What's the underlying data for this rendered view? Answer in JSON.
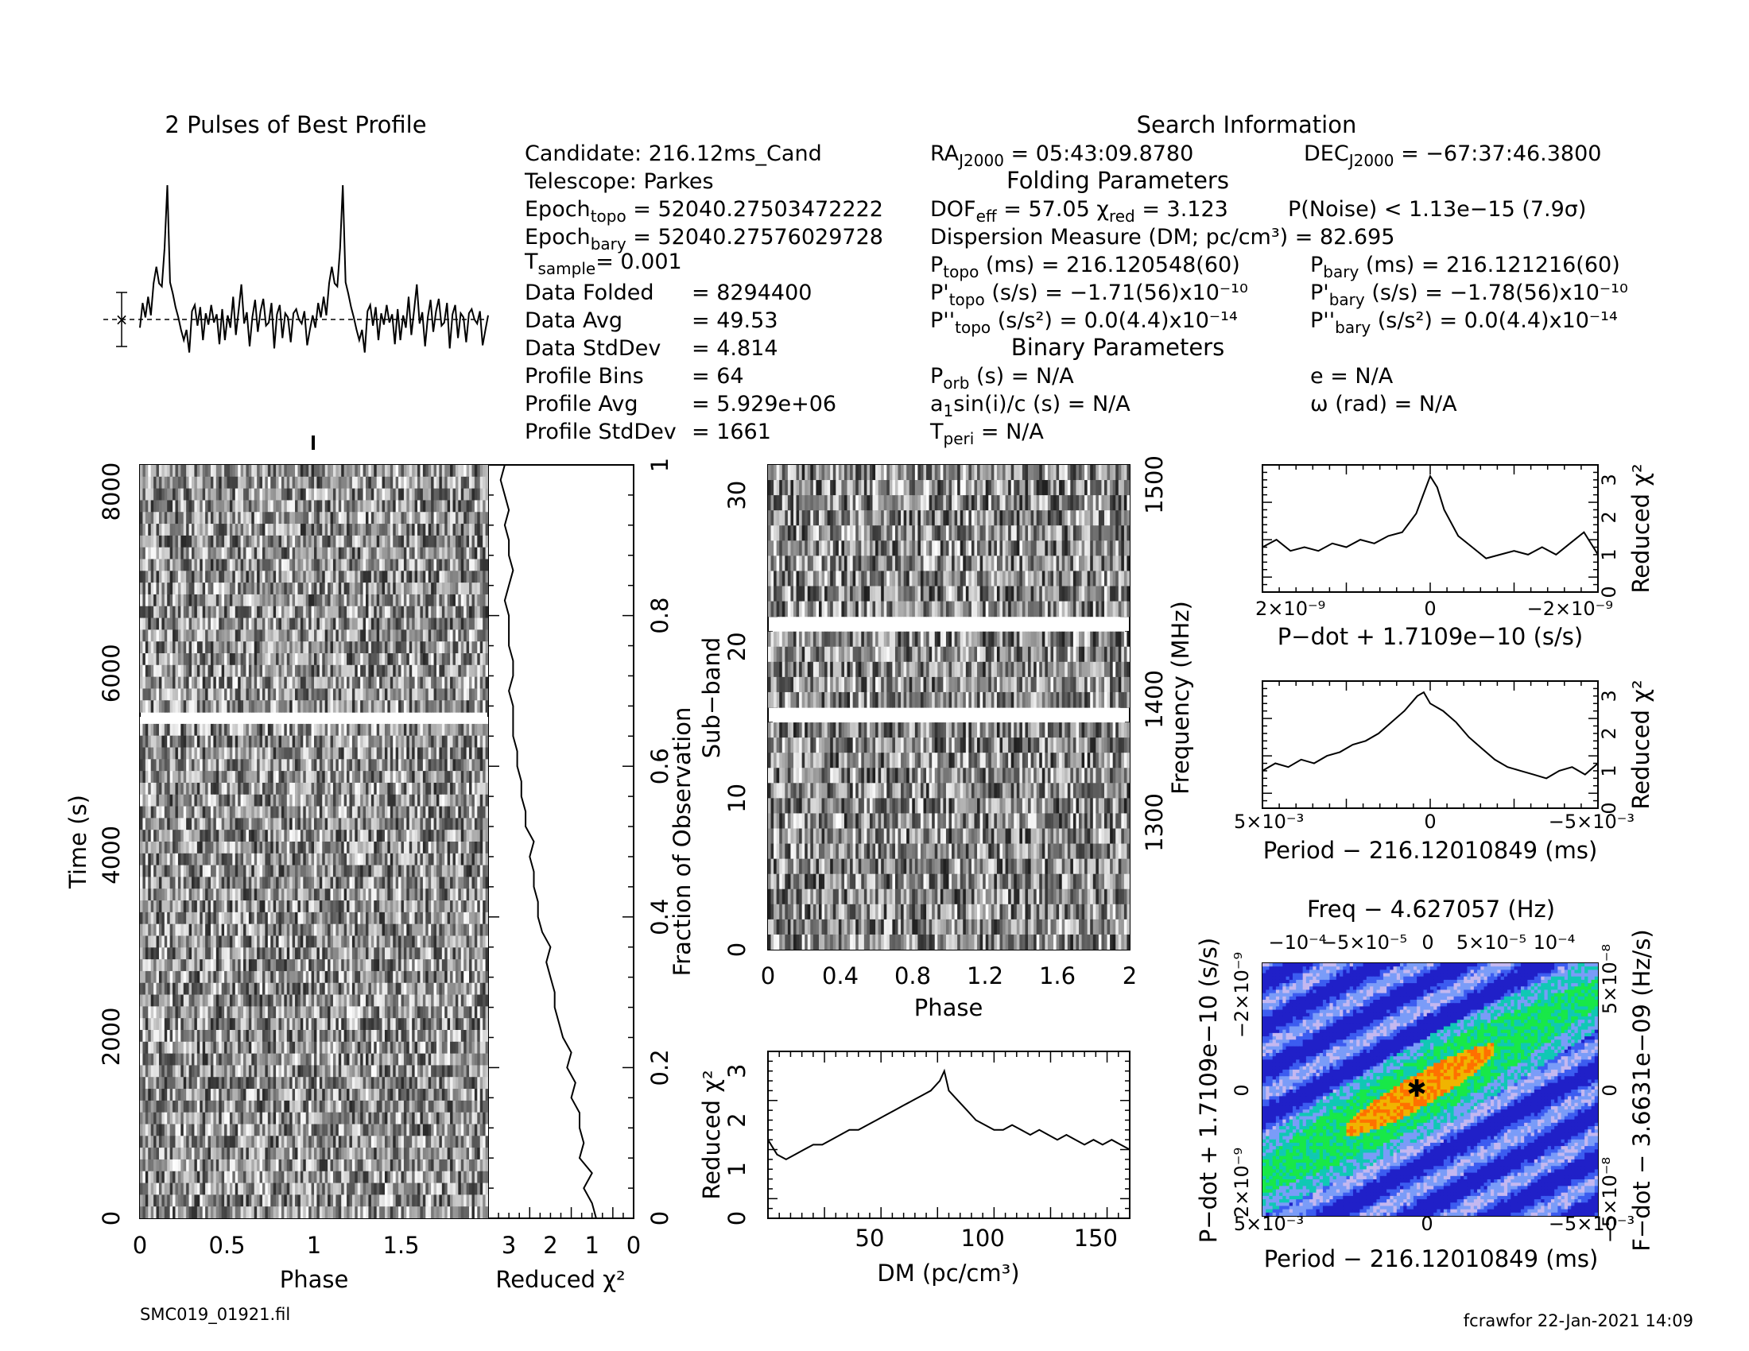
{
  "filename": "SMC019_01921.fil",
  "footer": "fcrawfor 22-Jan-2021 14:09",
  "best_profile": {
    "title": "2 Pulses of Best Profile"
  },
  "search_info": {
    "title": "Search Information",
    "left_column": [
      {
        "label": "Candidate:  216.12ms_Cand"
      },
      {
        "label": "Telescope:  Parkes"
      },
      {
        "label": "Epoch",
        "sub": "topo",
        "value": " = 52040.27503472222"
      },
      {
        "label": "Epoch",
        "sub": "bary",
        "value": " = 52040.27576029728"
      },
      {
        "label": "T",
        "sub": "sample",
        "value": "=   0.001"
      },
      {
        "label": "Data Folded",
        "value": "=   8294400"
      },
      {
        "label": "Data Avg",
        "value": "=   49.53"
      },
      {
        "label": "Data StdDev",
        "value": "=   4.814"
      },
      {
        "label": "Profile Bins",
        "value": "=   64"
      },
      {
        "label": "Profile Avg",
        "value": "=   5.929e+06"
      },
      {
        "label": "Profile StdDev",
        "value": "=   1661"
      }
    ],
    "ra": {
      "label": "RA",
      "sub": "J2000",
      "value": " = 05:43:09.8780"
    },
    "dec": {
      "label": "DEC",
      "sub": "J2000",
      "value": " = −67:37:46.3800"
    },
    "folding_title": "Folding Parameters",
    "dof": {
      "label": "DOF",
      "sub": "eff",
      "value": " = 57.05  χ",
      "sub2": "red",
      "value2": " = 3.123"
    },
    "pnoise": "P(Noise) < 1.13e−15   (7.9σ)",
    "dm": "Dispersion Measure (DM; pc/cm³) = 82.695",
    "ptopo": {
      "label": "P",
      "sub": "topo",
      "value": " (ms)  =  216.120548(60)"
    },
    "pbary": {
      "label": "P",
      "sub": "bary",
      "value": " (ms)  =  216.121216(60)"
    },
    "pdot_topo": {
      "label": "P'",
      "sub": "topo",
      "value": " (s/s)  = −1.71(56)x10⁻¹⁰"
    },
    "pdot_bary": {
      "label": "P'",
      "sub": "bary",
      "value": " (s/s)  = −1.78(56)x10⁻¹⁰"
    },
    "pddot_topo": {
      "label": "P''",
      "sub": "topo",
      "value": " (s/s²) = 0.0(4.4)x10⁻¹⁴"
    },
    "pddot_bary": {
      "label": "P''",
      "sub": "bary",
      "value": " (s/s²) = 0.0(4.4)x10⁻¹⁴"
    },
    "binary_title": "Binary Parameters",
    "porb": {
      "label": "P",
      "sub": "orb",
      "value": " (s) = N/A"
    },
    "ecc": "e = N/A",
    "a1": {
      "label": "a",
      "sub": "1",
      "value": "sin(i)/c (s) = N/A"
    },
    "omega": "ω (rad) = N/A",
    "tperi": {
      "label": "T",
      "sub": "peri",
      "value": " = N/A"
    }
  },
  "chart_data": [
    {
      "name": "best-profile",
      "type": "line",
      "x": [
        0,
        1,
        2,
        3,
        4,
        5,
        6,
        7,
        8,
        9,
        10,
        11,
        12,
        13,
        14,
        15,
        16,
        17,
        18,
        19,
        20,
        21,
        22,
        23,
        24,
        25,
        26,
        27,
        28,
        29,
        30,
        31,
        32,
        33,
        34,
        35,
        36,
        37,
        38,
        39,
        40,
        41,
        42,
        43,
        44,
        45,
        46,
        47,
        48,
        49,
        50,
        51,
        52,
        53,
        54,
        55,
        56,
        57,
        58,
        59,
        60,
        61,
        62,
        63
      ],
      "values": [
        -0.8,
        1.6,
        0.2,
        2.2,
        0.4,
        3.5,
        5.1,
        3.5,
        3.2,
        6.9,
        13.0,
        3.6,
        2.5,
        1.2,
        0.2,
        -1.0,
        -2.0,
        -1.0,
        -3.2,
        0.8,
        1.4,
        -0.6,
        1.2,
        -2.0,
        0.6,
        -0.5,
        1.4,
        -0.3,
        0.5,
        -2.4,
        1.0,
        -2.0,
        0.4,
        -0.8,
        2.2,
        -1.5,
        0.9,
        3.4,
        -0.4,
        0.7,
        -2.6,
        0.2,
        1.9,
        -1.2,
        0.8,
        2.0,
        -0.6,
        -0.3,
        1.6,
        -2.8,
        0.5,
        1.4,
        -1.8,
        0.6,
        0.2,
        -2.2,
        0.6,
        1.0,
        0.0,
        -0.4,
        0.8,
        -2.5,
        -1.0,
        0.4
      ],
      "xlabel": "",
      "ylabel": "",
      "notes_visible": "two pulses shown"
    },
    {
      "name": "time-phase",
      "type": "heatmap",
      "xlabel": "Phase",
      "ylabel": "Time (s)",
      "xticks": [
        "0",
        "0.5",
        "1",
        "1.5"
      ],
      "yticks": [
        "0",
        "2000",
        "4000",
        "6000",
        "8000"
      ],
      "xlim": [
        0,
        2
      ],
      "ylim": [
        0,
        8294
      ]
    },
    {
      "name": "time-chi2",
      "type": "line",
      "xlabel": "Reduced χ²",
      "ylabel": "Fraction of Observation",
      "xticks": [
        "3",
        "2",
        "1",
        "0"
      ],
      "yticks": [
        "0",
        "0.2",
        "0.4",
        "0.6",
        "0.8",
        "1"
      ],
      "xlim": [
        3.5,
        0
      ],
      "ylim": [
        0,
        1
      ],
      "x": [
        0.0,
        0.02,
        0.04,
        0.06,
        0.08,
        0.1,
        0.12,
        0.14,
        0.16,
        0.18,
        0.2,
        0.22,
        0.24,
        0.26,
        0.28,
        0.3,
        0.32,
        0.34,
        0.36,
        0.38,
        0.4,
        0.42,
        0.44,
        0.46,
        0.48,
        0.5,
        0.52,
        0.54,
        0.56,
        0.58,
        0.6,
        0.62,
        0.64,
        0.66,
        0.68,
        0.7,
        0.72,
        0.74,
        0.76,
        0.78,
        0.8,
        0.82,
        0.84,
        0.86,
        0.88,
        0.9,
        0.92,
        0.94,
        0.96,
        0.98,
        1.0
      ],
      "values": [
        0.9,
        1.0,
        1.2,
        1.0,
        1.3,
        1.2,
        1.3,
        1.3,
        1.5,
        1.4,
        1.6,
        1.5,
        1.7,
        1.8,
        1.9,
        1.9,
        2.0,
        2.1,
        2.0,
        2.2,
        2.3,
        2.3,
        2.4,
        2.4,
        2.5,
        2.4,
        2.6,
        2.6,
        2.7,
        2.7,
        2.8,
        2.8,
        2.9,
        2.9,
        2.9,
        3.0,
        2.9,
        2.9,
        3.0,
        3.0,
        3.0,
        3.1,
        3.0,
        2.9,
        3.0,
        3.0,
        3.1,
        3.0,
        3.1,
        3.2,
        3.1
      ]
    },
    {
      "name": "subband-phase",
      "type": "heatmap",
      "xlabel": "Phase",
      "ylabel": "Sub−band",
      "y2label": "Frequency (MHz)",
      "xticks": [
        "0",
        "0.4",
        "0.8",
        "1.2",
        "1.6",
        "2"
      ],
      "yticks": [
        "0",
        "10",
        "20",
        "30"
      ],
      "y2ticks": [
        "1300",
        "1400",
        "1500"
      ],
      "xlim": [
        0,
        2
      ],
      "ylim": [
        0,
        32
      ]
    },
    {
      "name": "dm-chi2",
      "type": "line",
      "xlabel": "DM (pc/cm³)",
      "ylabel": "Reduced χ²",
      "xticks": [
        "50",
        "100",
        "150"
      ],
      "yticks": [
        "0",
        "1",
        "2",
        "3"
      ],
      "xlim": [
        5,
        165
      ],
      "ylim": [
        0,
        3.4
      ],
      "x": [
        5,
        9,
        13,
        17,
        21,
        25,
        29,
        33,
        37,
        41,
        45,
        49,
        53,
        57,
        61,
        65,
        69,
        73,
        77,
        81,
        83,
        85,
        89,
        93,
        97,
        101,
        105,
        109,
        113,
        117,
        121,
        125,
        129,
        133,
        137,
        141,
        145,
        149,
        153,
        157,
        161,
        165
      ],
      "values": [
        1.6,
        1.3,
        1.2,
        1.3,
        1.4,
        1.5,
        1.5,
        1.6,
        1.7,
        1.8,
        1.8,
        1.9,
        2.0,
        2.1,
        2.2,
        2.3,
        2.4,
        2.5,
        2.6,
        2.8,
        3.0,
        2.6,
        2.4,
        2.2,
        2.0,
        1.9,
        1.8,
        1.8,
        1.9,
        1.8,
        1.7,
        1.8,
        1.7,
        1.6,
        1.7,
        1.6,
        1.5,
        1.6,
        1.5,
        1.6,
        1.5,
        1.4
      ]
    },
    {
      "name": "pdot-chi2",
      "type": "line",
      "xlabel": "P−dot + 1.7109e−10 (s/s)",
      "ylabel": "Reduced χ²",
      "xticks": [
        "2×10⁻⁹",
        "0",
        "−2×10⁻⁹"
      ],
      "yticks": [
        "0",
        "1",
        "2",
        "3"
      ],
      "xlim": [
        2.4e-09,
        -2.4e-09
      ],
      "ylim": [
        0,
        3.4
      ],
      "x": [
        2.4,
        2.2,
        2.0,
        1.8,
        1.6,
        1.4,
        1.2,
        1.0,
        0.8,
        0.6,
        0.4,
        0.2,
        0.1,
        0.0,
        -0.1,
        -0.2,
        -0.4,
        -0.6,
        -0.8,
        -1.0,
        -1.2,
        -1.4,
        -1.6,
        -1.8,
        -2.0,
        -2.2,
        -2.4
      ],
      "values": [
        1.2,
        1.4,
        1.1,
        1.2,
        1.1,
        1.3,
        1.2,
        1.4,
        1.3,
        1.5,
        1.6,
        2.1,
        2.6,
        3.1,
        2.8,
        2.2,
        1.5,
        1.2,
        0.9,
        1.0,
        1.1,
        1.0,
        1.2,
        1.0,
        1.3,
        1.6,
        1.0
      ]
    },
    {
      "name": "period-chi2",
      "type": "line",
      "xlabel": "Period − 216.12010849 (ms)",
      "ylabel": "Reduced χ²",
      "xticks": [
        "5×10⁻³",
        "0",
        "−5×10⁻³"
      ],
      "yticks": [
        "0",
        "1",
        "2",
        "3"
      ],
      "xlim": [
        0.0052,
        -0.0052
      ],
      "ylim": [
        0,
        3.4
      ],
      "x": [
        5.2,
        4.8,
        4.4,
        4.0,
        3.6,
        3.2,
        2.8,
        2.4,
        2.0,
        1.6,
        1.2,
        0.8,
        0.4,
        0.2,
        0.0,
        -0.4,
        -0.8,
        -1.2,
        -1.6,
        -2.0,
        -2.4,
        -2.8,
        -3.2,
        -3.6,
        -4.0,
        -4.4,
        -4.8,
        -5.2
      ],
      "values": [
        1.0,
        1.2,
        1.1,
        1.3,
        1.2,
        1.4,
        1.5,
        1.7,
        1.8,
        2.0,
        2.3,
        2.6,
        3.0,
        3.1,
        2.8,
        2.6,
        2.3,
        1.9,
        1.6,
        1.3,
        1.1,
        1.0,
        0.9,
        0.8,
        1.0,
        1.1,
        0.9,
        1.2
      ]
    },
    {
      "name": "pdot-period-plane",
      "type": "heatmap",
      "xlabel": "Period − 216.12010849 (ms)",
      "ylabel": "P−dot + 1.7109e−10 (s/s)",
      "toplabel": "Freq − 4.627057 (Hz)",
      "y2label": "F−dot − 3.6631e−09 (Hz/s)",
      "xticks": [
        "5×10⁻³",
        "0",
        "−5×10⁻³"
      ],
      "yticks": [
        "−2×10⁻⁹",
        "0",
        "2×10⁻⁹"
      ],
      "topticks": [
        "−10⁻⁴",
        "−5×10⁻⁵",
        "0",
        "5×10⁻⁵",
        "10⁻⁴"
      ],
      "y2ticks": [
        "5×10⁻⁸",
        "0",
        "−5×10⁻⁸"
      ],
      "colors": [
        "#2020c8",
        "#3c5cf0",
        "#7a9cf8",
        "#c4b8f0",
        "#10c8b4",
        "#18e848",
        "#f0b400",
        "#ff7000"
      ]
    }
  ]
}
